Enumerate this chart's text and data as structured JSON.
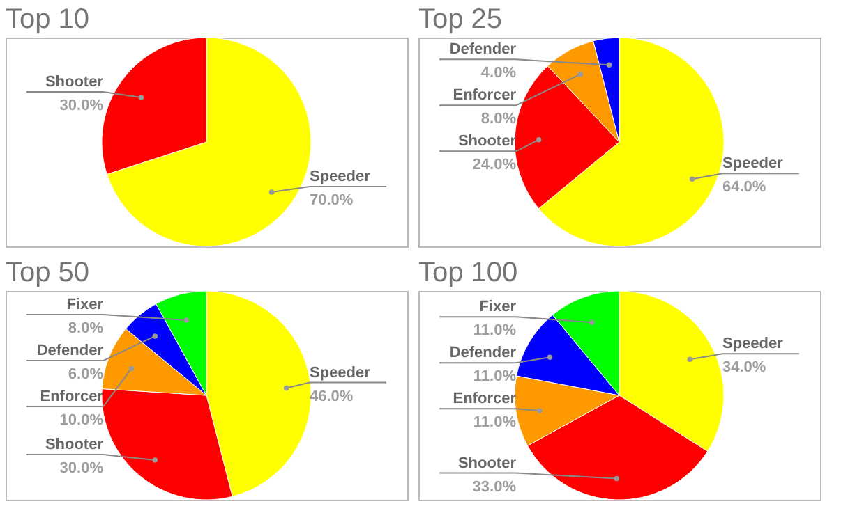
{
  "chart_data": [
    {
      "type": "pie",
      "title": "Top 10",
      "categories": [
        "Speeder",
        "Shooter"
      ],
      "values": [
        70,
        30
      ],
      "colors": [
        "#ffff00",
        "#ff0000"
      ],
      "value_labels": [
        "70.0%",
        "30.0%"
      ]
    },
    {
      "type": "pie",
      "title": "Top 25",
      "categories": [
        "Speeder",
        "Shooter",
        "Enforcer",
        "Defender"
      ],
      "values": [
        64,
        24,
        8,
        4
      ],
      "colors": [
        "#ffff00",
        "#ff0000",
        "#ff9900",
        "#0000ff"
      ],
      "value_labels": [
        "64.0%",
        "24.0%",
        "8.0%",
        "4.0%"
      ]
    },
    {
      "type": "pie",
      "title": "Top 50",
      "categories": [
        "Speeder",
        "Shooter",
        "Enforcer",
        "Defender",
        "Fixer"
      ],
      "values": [
        46,
        30,
        10,
        6,
        8
      ],
      "colors": [
        "#ffff00",
        "#ff0000",
        "#ff9900",
        "#0000ff",
        "#00ff00"
      ],
      "value_labels": [
        "46.0%",
        "30.0%",
        "10.0%",
        "6.0%",
        "8.0%"
      ]
    },
    {
      "type": "pie",
      "title": "Top 100",
      "categories": [
        "Speeder",
        "Shooter",
        "Enforcer",
        "Defender",
        "Fixer"
      ],
      "values": [
        34,
        33,
        11,
        11,
        11
      ],
      "colors": [
        "#ffff00",
        "#ff0000",
        "#ff9900",
        "#0000ff",
        "#00ff00"
      ],
      "value_labels": [
        "34.0%",
        "33.0%",
        "11.0%",
        "11.0%",
        "11.0%"
      ]
    }
  ]
}
